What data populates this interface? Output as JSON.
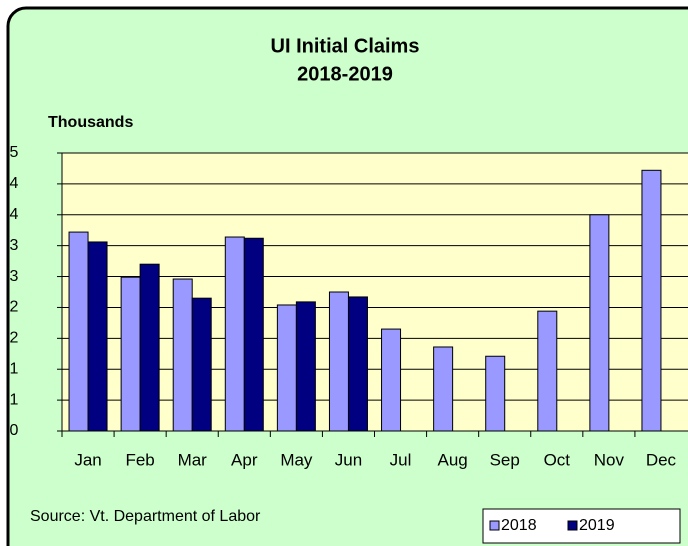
{
  "chart_data": {
    "type": "bar",
    "title": "UI Initial Claims",
    "subtitle": "2018-2019",
    "y_label": "Thousands",
    "annotation": "Source: Vt. Department of Labor",
    "categories": [
      "Jan",
      "Feb",
      "Mar",
      "Apr",
      "May",
      "Jun",
      "Jul",
      "Aug",
      "Sep",
      "Oct",
      "Nov",
      "Dec"
    ],
    "series": [
      {
        "name": "2018",
        "color": "#9999ff",
        "values": [
          3.22,
          2.49,
          2.46,
          3.14,
          2.04,
          2.25,
          1.65,
          1.36,
          1.21,
          1.94,
          3.5,
          4.22
        ]
      },
      {
        "name": "2019",
        "color": "#000080",
        "values": [
          3.06,
          2.7,
          2.15,
          3.12,
          2.09,
          2.17,
          null,
          null,
          null,
          null,
          null,
          null
        ]
      }
    ],
    "ylim": [
      0,
      4.5
    ],
    "yticks": [
      0,
      {
        "value": 0.5,
        "label": "1"
      },
      1,
      {
        "value": 1.5,
        "label": "2"
      },
      2,
      {
        "value": 2.5,
        "label": "3"
      },
      3,
      {
        "value": 3.5,
        "label": "4"
      },
      4,
      {
        "value": 4.5,
        "label": "5"
      }
    ],
    "grid": true,
    "legend": "bottom-right"
  }
}
